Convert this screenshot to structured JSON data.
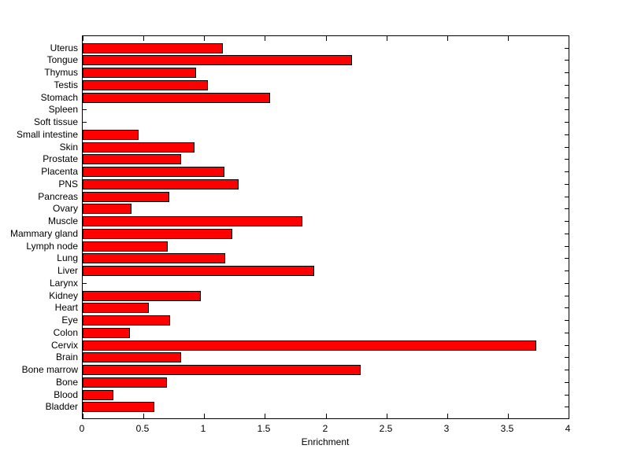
{
  "chart_data": {
    "type": "bar",
    "orientation": "horizontal",
    "title": "",
    "xlabel": "Enrichment",
    "ylabel": "",
    "xlim": [
      0,
      4
    ],
    "xticks": [
      0,
      0.5,
      1,
      1.5,
      2,
      2.5,
      3,
      3.5,
      4
    ],
    "xtick_labels": [
      "0",
      "0.5",
      "1",
      "1.5",
      "2",
      "2.5",
      "3",
      "3.5",
      "4"
    ],
    "grid": false,
    "legend": null,
    "bar_color": "#ff0000",
    "bar_edge_color": "#000000",
    "axis_color": "#000000",
    "text_color": "#000000",
    "background_color": "#ffffff",
    "categories": [
      "Uterus",
      "Tongue",
      "Thymus",
      "Testis",
      "Stomach",
      "Spleen",
      "Soft tissue",
      "Small intestine",
      "Skin",
      "Prostate",
      "Placenta",
      "PNS",
      "Pancreas",
      "Ovary",
      "Muscle",
      "Mammary gland",
      "Lymph node",
      "Lung",
      "Liver",
      "Larynx",
      "Kidney",
      "Heart",
      "Eye",
      "Colon",
      "Cervix",
      "Brain",
      "Bone marrow",
      "Bone",
      "Blood",
      "Bladder"
    ],
    "values": [
      1.15,
      2.21,
      0.93,
      1.03,
      1.54,
      0,
      0,
      0.46,
      0.92,
      0.81,
      1.16,
      1.28,
      0.71,
      0.4,
      1.8,
      1.23,
      0.7,
      1.17,
      1.9,
      0,
      0.97,
      0.54,
      0.72,
      0.39,
      3.72,
      0.81,
      2.28,
      0.69,
      0.25,
      0.59
    ]
  }
}
